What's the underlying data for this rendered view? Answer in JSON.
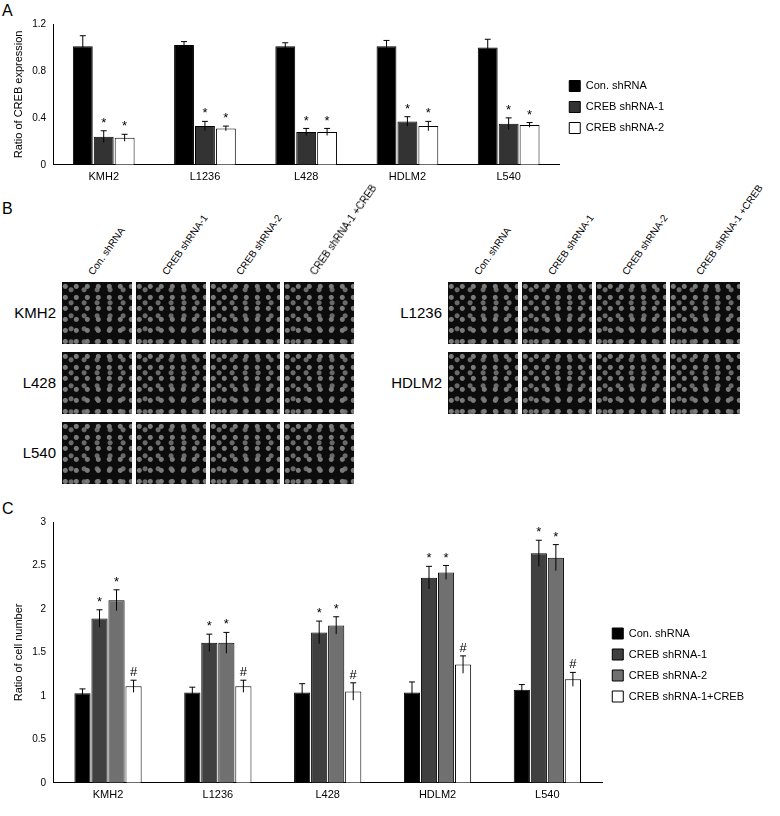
{
  "chart_data": [
    {
      "type": "bar",
      "panel_label": "A",
      "y_label": "Ratio of CREB expression",
      "categories": [
        "KMH2",
        "L1236",
        "L428",
        "HDLM2",
        "L540"
      ],
      "ylim": [
        0,
        1.2
      ],
      "yticks": [
        0,
        0.4,
        0.8,
        1.2
      ],
      "grid": false,
      "legend": "right",
      "series": [
        {
          "name": "Con. shRNA",
          "color": "#000000",
          "values": [
            1.01,
            1.02,
            1.01,
            1.01,
            1.0
          ],
          "errors": [
            0.09,
            0.03,
            0.03,
            0.05,
            0.07
          ]
        },
        {
          "name": "CREB shRNA-1",
          "color": "#333333",
          "values": [
            0.24,
            0.33,
            0.28,
            0.37,
            0.35
          ],
          "errors": [
            0.05,
            0.04,
            0.03,
            0.04,
            0.05
          ],
          "annotations": [
            "*",
            "*",
            "*",
            "*",
            "*"
          ]
        },
        {
          "name": "CREB shRNA-2",
          "color": "#ffffff",
          "values": [
            0.23,
            0.31,
            0.28,
            0.33,
            0.34
          ],
          "errors": [
            0.03,
            0.02,
            0.03,
            0.04,
            0.02
          ],
          "annotations": [
            "*",
            "*",
            "*",
            "*",
            "*"
          ]
        }
      ]
    },
    {
      "type": "bar",
      "panel_label": "C",
      "y_label": "Ratio of cell number",
      "categories": [
        "KMH2",
        "L1236",
        "L428",
        "HDLM2",
        "L540"
      ],
      "ylim": [
        0,
        3
      ],
      "yticks": [
        0,
        0.5,
        1,
        1.5,
        2,
        2.5,
        3
      ],
      "grid": false,
      "legend": "right",
      "series": [
        {
          "name": "Con. shRNA",
          "color": "#000000",
          "values": [
            1.03,
            1.04,
            1.04,
            1.04,
            1.07
          ],
          "errors": [
            0.05,
            0.06,
            0.1,
            0.12,
            0.06
          ]
        },
        {
          "name": "CREB shRNA-1",
          "color": "#404040",
          "values": [
            1.89,
            1.61,
            1.73,
            2.36,
            2.64
          ],
          "errors": [
            0.1,
            0.1,
            0.13,
            0.13,
            0.15
          ],
          "annotations": [
            "*",
            "*",
            "*",
            "*",
            "*"
          ]
        },
        {
          "name": "CREB shRNA-2",
          "color": "#707070",
          "values": [
            2.1,
            1.61,
            1.81,
            2.42,
            2.59
          ],
          "errors": [
            0.12,
            0.12,
            0.1,
            0.08,
            0.15
          ],
          "annotations": [
            "*",
            "*",
            "*",
            "*",
            "*"
          ]
        },
        {
          "name": "CREB shRNA-1+CREB",
          "color": "#ffffff",
          "values": [
            1.11,
            1.11,
            1.05,
            1.36,
            1.19
          ],
          "errors": [
            0.07,
            0.07,
            0.1,
            0.1,
            0.08
          ],
          "annotations": [
            "#",
            "#",
            "#",
            "#",
            "#"
          ]
        }
      ]
    }
  ],
  "image_panel": {
    "panel_label": "B",
    "groups": [
      {
        "columns": [
          "Con. shRNA",
          "CREB shRNA-1",
          "CREB shRNA-2",
          "CREB shRNA-1 +CREB"
        ],
        "rows": [
          "KMH2",
          "L428",
          "L540"
        ]
      },
      {
        "columns": [
          "Con. shRNA",
          "CREB shRNA-1",
          "CREB shRNA-2",
          "CREB shRNA-1 +CREB"
        ],
        "rows": [
          "L1236",
          "HDLM2"
        ]
      }
    ]
  }
}
